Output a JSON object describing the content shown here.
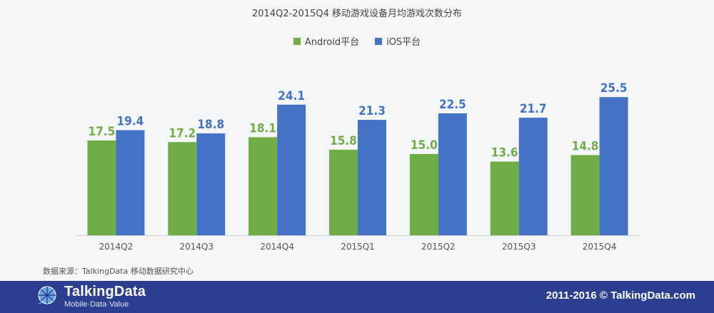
{
  "title": "2014Q2-2015Q4  移动游戏设备月均游戏次数分布",
  "source": "数据来源：TalkingData  移动数据研究中心",
  "footer": {
    "logo_name": "TalkingData",
    "logo_tagline": "Mobile·Data·Value",
    "copyright": "2011-2016 © TalkingData.com"
  },
  "colors": {
    "android": "#70ad47",
    "ios": "#4472c4",
    "footer_bg": "#2c3e8f"
  },
  "chart_data": {
    "type": "bar",
    "title": "2014Q2-2015Q4  移动游戏设备月均游戏次数分布",
    "categories": [
      "2014Q2",
      "2014Q3",
      "2014Q4",
      "2015Q1",
      "2015Q2",
      "2015Q3",
      "2015Q4"
    ],
    "series": [
      {
        "name": "Android平台",
        "color": "#70ad47",
        "values": [
          17.5,
          17.2,
          18.1,
          15.8,
          15.0,
          13.6,
          14.8
        ]
      },
      {
        "name": "iOS平台",
        "color": "#4472c4",
        "values": [
          19.4,
          18.8,
          24.1,
          21.3,
          22.5,
          21.7,
          25.5
        ]
      }
    ],
    "ylim": [
      0,
      30
    ],
    "grid": false,
    "legend_position": "top-center",
    "data_labels": true
  }
}
